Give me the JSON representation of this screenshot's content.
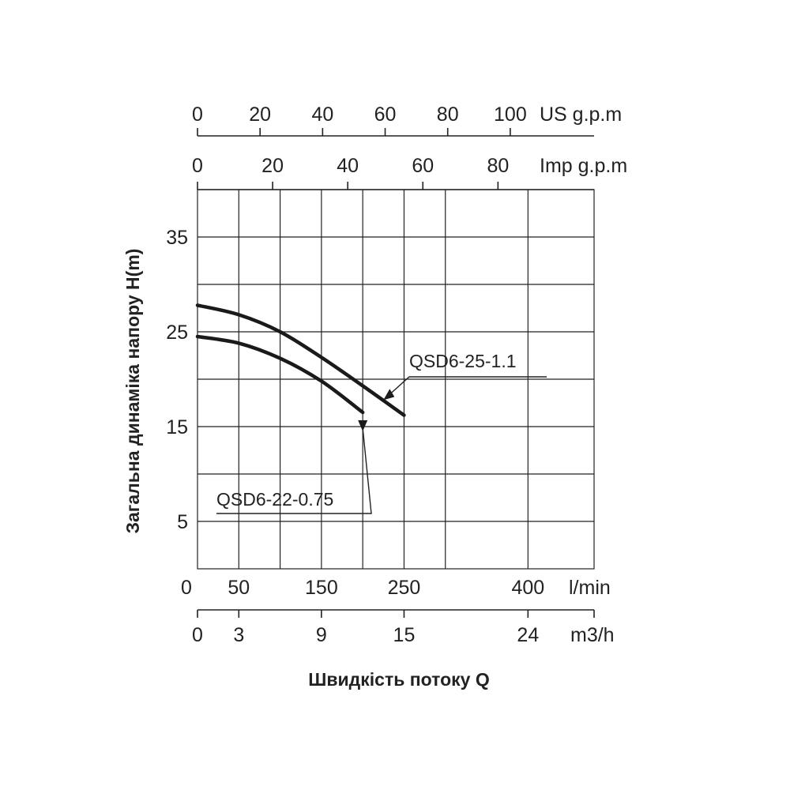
{
  "chart_data": {
    "type": "line",
    "title": "",
    "xlabel": "Швидкість потоку Q",
    "ylabel": "Загальна динаміка напору H(m)",
    "grid": true,
    "ylim": [
      0,
      40
    ],
    "y_ticks": [
      "5",
      "15",
      "25",
      "35"
    ],
    "primary_x": {
      "unit": "l/min",
      "ticks": [
        "0",
        "50",
        "150",
        "250",
        "400"
      ]
    },
    "x_axes": [
      {
        "unit": "US g.p.m",
        "ticks": [
          "0",
          "20",
          "40",
          "60",
          "80",
          "100"
        ]
      },
      {
        "unit": "Imp g.p.m",
        "ticks": [
          "0",
          "20",
          "40",
          "60",
          "80"
        ]
      },
      {
        "unit": "m3/h",
        "ticks": [
          "0",
          "3",
          "9",
          "15",
          "24"
        ]
      }
    ],
    "series": [
      {
        "name": "QSD6-25-1.1",
        "x": [
          0,
          50,
          100,
          150,
          200,
          250
        ],
        "y": [
          27.8,
          26.8,
          25.0,
          22.3,
          19.3,
          16.2
        ]
      },
      {
        "name": "QSD6-22-0.75",
        "x": [
          0,
          50,
          100,
          150,
          200
        ],
        "y": [
          24.5,
          23.8,
          22.2,
          19.8,
          16.5
        ]
      }
    ]
  }
}
